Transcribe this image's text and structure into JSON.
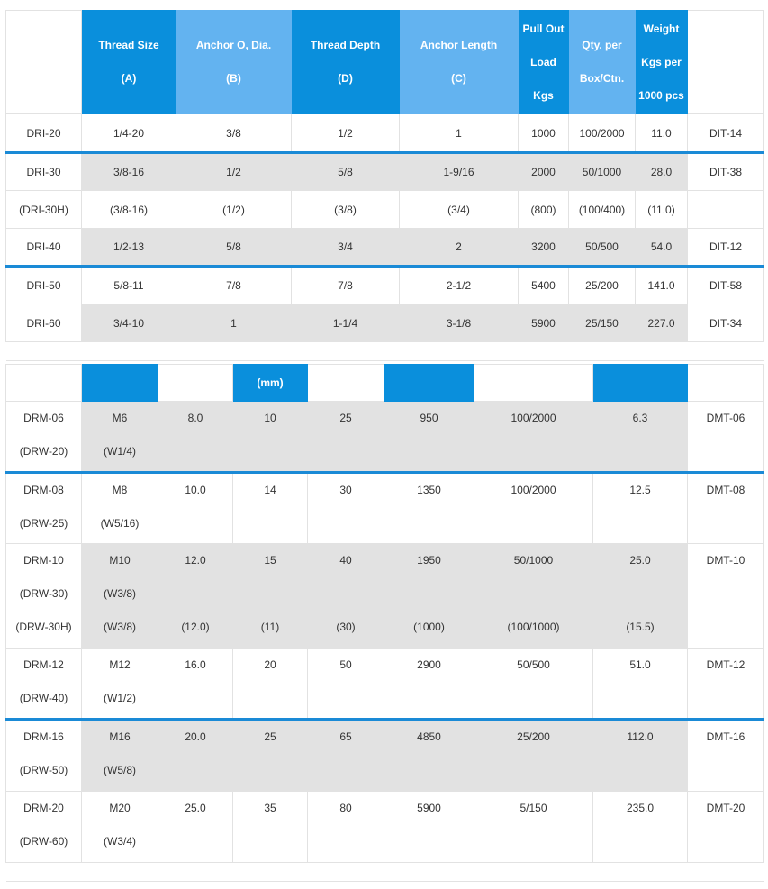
{
  "table1": {
    "headers": [
      {
        "lines": [
          ""
        ]
      },
      {
        "lines": [
          "Thread Size",
          "(A)"
        ]
      },
      {
        "lines": [
          "Anchor O, Dia.",
          "(B)"
        ]
      },
      {
        "lines": [
          "Thread Depth",
          "(D)"
        ]
      },
      {
        "lines": [
          "Anchor Length",
          "(C)"
        ]
      },
      {
        "lines": [
          "Pull Out",
          "Load",
          "Kgs"
        ]
      },
      {
        "lines": [
          "Qty. per",
          "Box/Ctn."
        ]
      },
      {
        "lines": [
          "Weight",
          "Kgs per",
          "1000 pcs"
        ]
      },
      {
        "lines": [
          ""
        ]
      }
    ],
    "rows": [
      [
        "DRI-20",
        "1/4-20",
        "3/8",
        "1/2",
        "1",
        "1000",
        "100/2000",
        "11.0",
        "DIT-14"
      ],
      [
        "DRI-30",
        "3/8-16",
        "1/2",
        "5/8",
        "1-9/16",
        "2000",
        "50/1000",
        "28.0",
        "DIT-38"
      ],
      [
        "(DRI-30H)",
        "(3/8-16)",
        "(1/2)",
        "(3/8)",
        "(3/4)",
        "(800)",
        "(100/400)",
        "(11.0)",
        ""
      ],
      [
        "DRI-40",
        "1/2-13",
        "5/8",
        "3/4",
        "2",
        "3200",
        "50/500",
        "54.0",
        "DIT-12"
      ],
      [
        "DRI-50",
        "5/8-11",
        "7/8",
        "7/8",
        "2-1/2",
        "5400",
        "25/200",
        "141.0",
        "DIT-58"
      ],
      [
        "DRI-60",
        "3/4-10",
        "1",
        "1-1/4",
        "3-1/8",
        "5900",
        "25/150",
        "227.0",
        "DIT-34"
      ]
    ]
  },
  "table2": {
    "unit_label": "(mm)",
    "rows": [
      {
        "c0": [
          "DRM-06",
          "(DRW-20)"
        ],
        "c1": [
          "M6",
          "(W1/4)"
        ],
        "c2": [
          "8.0"
        ],
        "c3": [
          "10"
        ],
        "c4": [
          "25"
        ],
        "c5": [
          "950"
        ],
        "c6": [
          "100/2000"
        ],
        "c7": [
          "6.3"
        ],
        "c8": [
          "DMT-06"
        ]
      },
      {
        "c0": [
          "DRM-08",
          "(DRW-25)"
        ],
        "c1": [
          "M8",
          "(W5/16)"
        ],
        "c2": [
          "10.0"
        ],
        "c3": [
          "14"
        ],
        "c4": [
          "30"
        ],
        "c5": [
          "1350"
        ],
        "c6": [
          "100/2000"
        ],
        "c7": [
          "12.5"
        ],
        "c8": [
          "DMT-08"
        ]
      },
      {
        "c0": [
          "DRM-10",
          "(DRW-30)",
          "(DRW-30H)"
        ],
        "c1": [
          "M10",
          "(W3/8)",
          "(W3/8)"
        ],
        "c2": [
          "12.0",
          "",
          "(12.0)"
        ],
        "c3": [
          "15",
          "",
          "(11)"
        ],
        "c4": [
          "40",
          "",
          "(30)"
        ],
        "c5": [
          "1950",
          "",
          "(1000)"
        ],
        "c6": [
          "50/1000",
          "",
          "(100/1000)"
        ],
        "c7": [
          "25.0",
          "",
          "(15.5)"
        ],
        "c8": [
          "DMT-10"
        ]
      },
      {
        "c0": [
          "DRM-12",
          "(DRW-40)"
        ],
        "c1": [
          "M12",
          "(W1/2)"
        ],
        "c2": [
          "16.0"
        ],
        "c3": [
          "20"
        ],
        "c4": [
          "50"
        ],
        "c5": [
          "2900"
        ],
        "c6": [
          "50/500"
        ],
        "c7": [
          "51.0"
        ],
        "c8": [
          "DMT-12"
        ]
      },
      {
        "c0": [
          "DRM-16",
          "(DRW-50)"
        ],
        "c1": [
          "M16",
          "(W5/8)"
        ],
        "c2": [
          "20.0"
        ],
        "c3": [
          "25"
        ],
        "c4": [
          "65"
        ],
        "c5": [
          "4850"
        ],
        "c6": [
          "25/200"
        ],
        "c7": [
          "112.0"
        ],
        "c8": [
          "DMT-16"
        ]
      },
      {
        "c0": [
          "DRM-20",
          "(DRW-60)"
        ],
        "c1": [
          "M20",
          "(W3/4)"
        ],
        "c2": [
          "25.0"
        ],
        "c3": [
          "35"
        ],
        "c4": [
          "80"
        ],
        "c5": [
          "5900"
        ],
        "c6": [
          "5/150"
        ],
        "c7": [
          "235.0"
        ],
        "c8": [
          "DMT-20"
        ]
      }
    ]
  },
  "colors": {
    "header_dark": "#0a8fdc",
    "header_light": "#63b3f0",
    "row_gray": "#e2e2e2",
    "separator": "#1a8ad6"
  }
}
